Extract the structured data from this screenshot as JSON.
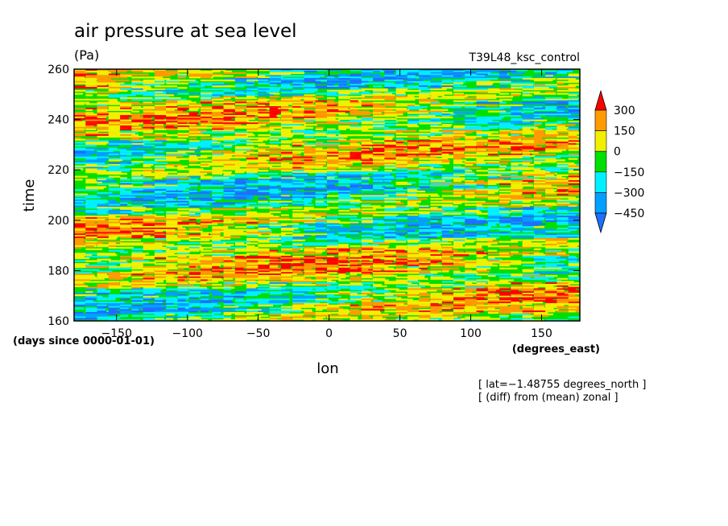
{
  "chart_data": {
    "type": "heatmap",
    "title": "air pressure at sea level",
    "units": "(Pa)",
    "run_label": "T39L48_ksc_control",
    "xlabel": "lon",
    "x_units": "(degrees_east)",
    "ylabel": "time",
    "y_units": "(days since 0000-01-01)",
    "xlim": [
      -180,
      177
    ],
    "ylim": [
      160,
      260
    ],
    "x_ticks": [
      -150,
      -100,
      -50,
      0,
      50,
      100,
      150
    ],
    "x_tick_labels": [
      "−150",
      "−100",
      "−50",
      "0",
      "50",
      "100",
      "150"
    ],
    "y_ticks": [
      160,
      180,
      200,
      220,
      240,
      260
    ],
    "y_tick_labels": [
      "160",
      "180",
      "200",
      "220",
      "240",
      "260"
    ],
    "colorbar": {
      "levels": [
        -450,
        -300,
        -150,
        0,
        150,
        300
      ],
      "level_labels": [
        "−450",
        "−300",
        "−150",
        "0",
        "150",
        "300"
      ],
      "colors": [
        "#1e6fff",
        "#00a0ff",
        "#00f0ff",
        "#00e000",
        "#f0f000",
        "#ff9a00",
        "#ff0000"
      ],
      "extend": "both",
      "placement": "right"
    },
    "annotations": [
      "[ lat=−1.48755 degrees_north ]",
      "[ (diff) from (mean) zonal ]"
    ]
  }
}
